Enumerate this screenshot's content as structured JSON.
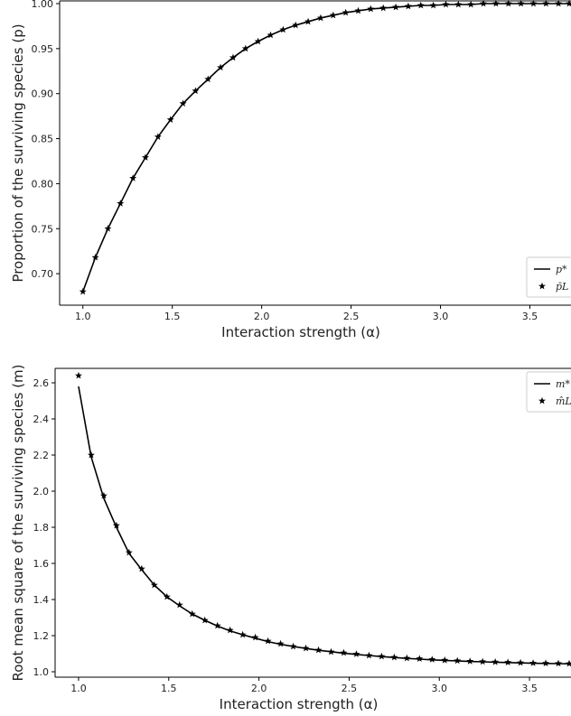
{
  "chart_data": [
    {
      "type": "line",
      "xlabel": "Interaction strength (α)",
      "ylabel": "Proportion of the surviving species (p)",
      "xlim": [
        0.87,
        3.73
      ],
      "ylim": [
        0.665,
        1.003
      ],
      "xticks": [
        1.0,
        1.5,
        2.0,
        2.5,
        3.0,
        3.5
      ],
      "xtick_labels": [
        "1.0",
        "1.5",
        "2.0",
        "2.5",
        "3.0",
        "3.5"
      ],
      "yticks": [
        0.7,
        0.75,
        0.8,
        0.85,
        0.9,
        0.95,
        1.0
      ],
      "ytick_labels": [
        "0.70",
        "0.75",
        "0.80",
        "0.85",
        "0.90",
        "0.95",
        "1.00"
      ],
      "grid": false,
      "legend_position": "bottom-right",
      "legend": [
        "p*",
        "p̄L"
      ],
      "series": [
        {
          "name": "p*",
          "style": "line",
          "color": "#000000",
          "x": [
            1.0,
            1.07,
            1.14,
            1.21,
            1.28,
            1.35,
            1.42,
            1.49,
            1.56,
            1.63,
            1.7,
            1.77,
            1.84,
            1.91,
            1.98,
            2.05,
            2.12,
            2.19,
            2.26,
            2.33,
            2.4,
            2.47,
            2.54,
            2.61,
            2.68,
            2.75,
            2.82,
            2.89,
            2.96,
            3.03,
            3.1,
            3.17,
            3.24,
            3.31,
            3.38,
            3.45,
            3.52,
            3.59,
            3.66,
            3.72
          ],
          "y": [
            0.68,
            0.718,
            0.75,
            0.778,
            0.806,
            0.829,
            0.852,
            0.871,
            0.889,
            0.903,
            0.916,
            0.929,
            0.94,
            0.95,
            0.958,
            0.965,
            0.971,
            0.976,
            0.98,
            0.984,
            0.987,
            0.99,
            0.992,
            0.994,
            0.995,
            0.996,
            0.997,
            0.998,
            0.998,
            0.999,
            0.999,
            0.999,
            1.0,
            1.0,
            1.0,
            1.0,
            1.0,
            1.0,
            1.0,
            1.0
          ]
        },
        {
          "name": "p̄L",
          "style": "markers",
          "marker": "star",
          "color": "#000000",
          "x": [
            1.0,
            1.07,
            1.14,
            1.21,
            1.28,
            1.35,
            1.42,
            1.49,
            1.56,
            1.63,
            1.7,
            1.77,
            1.84,
            1.91,
            1.98,
            2.05,
            2.12,
            2.19,
            2.26,
            2.33,
            2.4,
            2.47,
            2.54,
            2.61,
            2.68,
            2.75,
            2.82,
            2.89,
            2.96,
            3.03,
            3.1,
            3.17,
            3.24,
            3.31,
            3.38,
            3.45,
            3.52,
            3.59,
            3.66,
            3.72
          ],
          "y": [
            0.68,
            0.718,
            0.75,
            0.778,
            0.806,
            0.829,
            0.852,
            0.871,
            0.889,
            0.903,
            0.916,
            0.929,
            0.94,
            0.95,
            0.958,
            0.965,
            0.971,
            0.976,
            0.98,
            0.984,
            0.987,
            0.99,
            0.992,
            0.994,
            0.995,
            0.996,
            0.997,
            0.998,
            0.998,
            0.999,
            0.999,
            0.999,
            1.0,
            1.0,
            1.0,
            1.0,
            1.0,
            1.0,
            1.0,
            1.0
          ]
        }
      ]
    },
    {
      "type": "line",
      "xlabel": "Interaction strength (α)",
      "ylabel": "Root mean square of the surviving species (m)",
      "xlim": [
        0.87,
        3.73
      ],
      "ylim": [
        0.97,
        2.68
      ],
      "xticks": [
        1.0,
        1.5,
        2.0,
        2.5,
        3.0,
        3.5
      ],
      "xtick_labels": [
        "1.0",
        "1.5",
        "2.0",
        "2.5",
        "3.0",
        "3.5"
      ],
      "yticks": [
        1.0,
        1.2,
        1.4,
        1.6,
        1.8,
        2.0,
        2.2,
        2.4,
        2.6
      ],
      "ytick_labels": [
        "1.0",
        "1.2",
        "1.4",
        "1.6",
        "1.8",
        "2.0",
        "2.2",
        "2.4",
        "2.6"
      ],
      "grid": false,
      "legend_position": "top-right",
      "legend": [
        "m*",
        "m̂L"
      ],
      "series": [
        {
          "name": "m*",
          "style": "line",
          "color": "#000000",
          "x": [
            1.0,
            1.07,
            1.14,
            1.21,
            1.28,
            1.35,
            1.42,
            1.49,
            1.56,
            1.63,
            1.7,
            1.77,
            1.84,
            1.91,
            1.98,
            2.05,
            2.12,
            2.19,
            2.26,
            2.33,
            2.4,
            2.47,
            2.54,
            2.61,
            2.68,
            2.75,
            2.82,
            2.89,
            2.96,
            3.03,
            3.1,
            3.17,
            3.24,
            3.31,
            3.38,
            3.45,
            3.52,
            3.59,
            3.66,
            3.72
          ],
          "y": [
            2.58,
            2.19,
            1.96,
            1.8,
            1.655,
            1.565,
            1.48,
            1.415,
            1.365,
            1.32,
            1.285,
            1.253,
            1.226,
            1.205,
            1.186,
            1.167,
            1.152,
            1.14,
            1.129,
            1.119,
            1.111,
            1.103,
            1.096,
            1.09,
            1.084,
            1.079,
            1.074,
            1.07,
            1.066,
            1.063,
            1.06,
            1.057,
            1.055,
            1.053,
            1.051,
            1.049,
            1.047,
            1.046,
            1.045,
            1.044
          ]
        },
        {
          "name": "m̂L",
          "style": "markers",
          "marker": "star",
          "color": "#000000",
          "x": [
            1.0,
            1.07,
            1.14,
            1.21,
            1.28,
            1.35,
            1.42,
            1.49,
            1.56,
            1.63,
            1.7,
            1.77,
            1.84,
            1.91,
            1.98,
            2.05,
            2.12,
            2.19,
            2.26,
            2.33,
            2.4,
            2.47,
            2.54,
            2.61,
            2.68,
            2.75,
            2.82,
            2.89,
            2.96,
            3.03,
            3.1,
            3.17,
            3.24,
            3.31,
            3.38,
            3.45,
            3.52,
            3.59,
            3.66,
            3.72
          ],
          "y": [
            2.64,
            2.2,
            1.975,
            1.81,
            1.66,
            1.57,
            1.48,
            1.415,
            1.37,
            1.32,
            1.285,
            1.255,
            1.23,
            1.205,
            1.19,
            1.17,
            1.155,
            1.14,
            1.13,
            1.12,
            1.11,
            1.105,
            1.098,
            1.09,
            1.085,
            1.08,
            1.075,
            1.072,
            1.068,
            1.064,
            1.061,
            1.058,
            1.056,
            1.054,
            1.052,
            1.05,
            1.048,
            1.047,
            1.046,
            1.045
          ]
        }
      ]
    }
  ]
}
